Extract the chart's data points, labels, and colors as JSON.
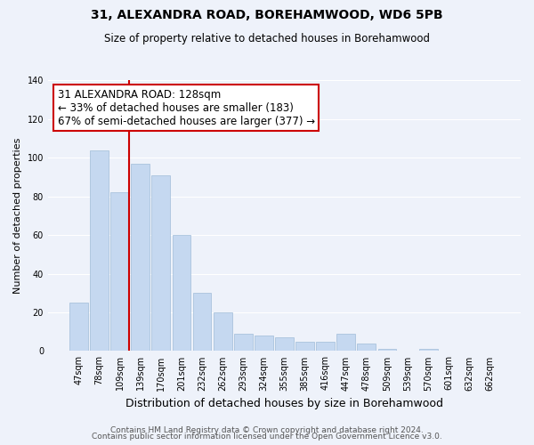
{
  "title": "31, ALEXANDRA ROAD, BOREHAMWOOD, WD6 5PB",
  "subtitle": "Size of property relative to detached houses in Borehamwood",
  "xlabel": "Distribution of detached houses by size in Borehamwood",
  "ylabel": "Number of detached properties",
  "bar_labels": [
    "47sqm",
    "78sqm",
    "109sqm",
    "139sqm",
    "170sqm",
    "201sqm",
    "232sqm",
    "262sqm",
    "293sqm",
    "324sqm",
    "355sqm",
    "385sqm",
    "416sqm",
    "447sqm",
    "478sqm",
    "509sqm",
    "539sqm",
    "570sqm",
    "601sqm",
    "632sqm",
    "662sqm"
  ],
  "bar_values": [
    25,
    104,
    82,
    97,
    91,
    60,
    30,
    20,
    9,
    8,
    7,
    5,
    5,
    9,
    4,
    1,
    0,
    1,
    0,
    0,
    0
  ],
  "bar_color": "#c5d8f0",
  "bar_edge_color": "#a0bcd8",
  "vline_color": "#cc0000",
  "annotation_title": "31 ALEXANDRA ROAD: 128sqm",
  "annotation_line1": "← 33% of detached houses are smaller (183)",
  "annotation_line2": "67% of semi-detached houses are larger (377) →",
  "annotation_box_color": "#ffffff",
  "annotation_border_color": "#cc0000",
  "ylim": [
    0,
    140
  ],
  "yticks": [
    0,
    20,
    40,
    60,
    80,
    100,
    120,
    140
  ],
  "footer1": "Contains HM Land Registry data © Crown copyright and database right 2024.",
  "footer2": "Contains public sector information licensed under the Open Government Licence v3.0.",
  "background_color": "#eef2fa",
  "grid_color": "#ffffff",
  "title_fontsize": 10,
  "subtitle_fontsize": 8.5,
  "ylabel_fontsize": 8,
  "xlabel_fontsize": 9,
  "tick_fontsize": 7,
  "footer_fontsize": 6.5,
  "annotation_fontsize": 8.5
}
